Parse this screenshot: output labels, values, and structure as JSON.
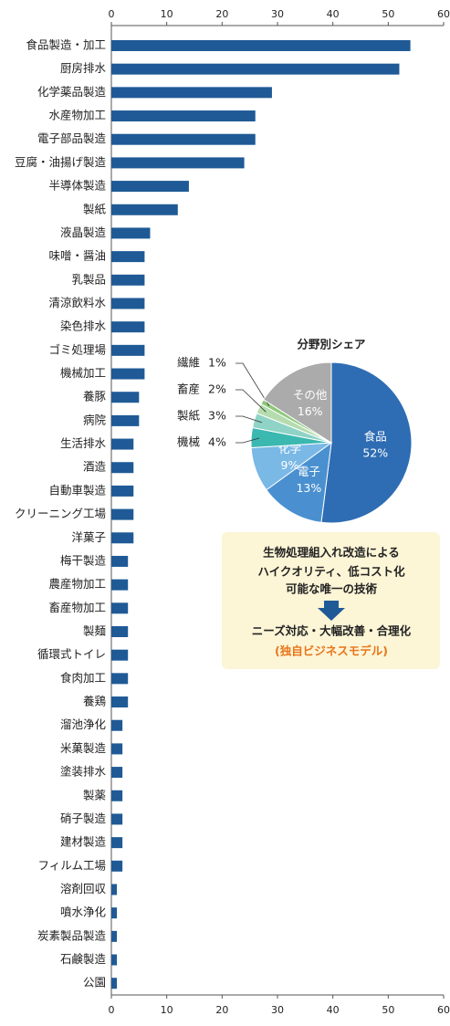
{
  "chart_data": [
    {
      "type": "hbar",
      "color": "#1f5a96",
      "categories": [
        "食品製造・加工",
        "厨房排水",
        "化学薬品製造",
        "水産物加工",
        "電子部品製造",
        "豆腐・油揚げ製造",
        "半導体製造",
        "製紙",
        "液晶製造",
        "味噌・醤油",
        "乳製品",
        "清涼飲料水",
        "染色排水",
        "ゴミ処理場",
        "機械加工",
        "養豚",
        "病院",
        "生活排水",
        "酒造",
        "自動車製造",
        "クリーニング工場",
        "洋菓子",
        "梅干製造",
        "農産物加工",
        "畜産物加工",
        "製麺",
        "循環式トイレ",
        "食肉加工",
        "養鶏",
        "溜池浄化",
        "米菓製造",
        "塗装排水",
        "製薬",
        "硝子製造",
        "建材製造",
        "フィルム工場",
        "溶剤回収",
        "噴水浄化",
        "炭素製品製造",
        "石鹸製造",
        "公園"
      ],
      "values": [
        54,
        52,
        29,
        26,
        26,
        24,
        14,
        12,
        7,
        6,
        6,
        6,
        6,
        6,
        6,
        5,
        5,
        4,
        4,
        4,
        4,
        4,
        3,
        3,
        3,
        3,
        3,
        3,
        3,
        2,
        2,
        2,
        2,
        2,
        2,
        2,
        1,
        1,
        1,
        1,
        1
      ],
      "xlim": [
        0,
        60
      ],
      "xticks": [
        0,
        10,
        20,
        30,
        40,
        50,
        60
      ]
    },
    {
      "type": "pie",
      "title": "分野別シェア",
      "categories": [
        "食品",
        "電子",
        "化学",
        "機械",
        "製紙",
        "畜産",
        "繊維",
        "その他"
      ],
      "values": [
        52,
        13,
        9,
        4,
        3,
        2,
        1,
        16
      ],
      "value_labels": [
        "52%",
        "13%",
        "9%",
        "4%",
        "3%",
        "2%",
        "1%",
        "16%"
      ],
      "colors": [
        "#2e6db4",
        "#4a90d0",
        "#7ab8e6",
        "#3bb8b0",
        "#8fd3c6",
        "#b5dcae",
        "#8cc879",
        "#ababab"
      ]
    }
  ],
  "callout": {
    "lines": [
      "生物処理組入れ改造による",
      "ハイクオリティ、低コスト化",
      "可能な唯一の技術",
      "ニーズ対応・大幅改善・合理化"
    ],
    "highlight": "(独自ビジネスモデル)"
  }
}
